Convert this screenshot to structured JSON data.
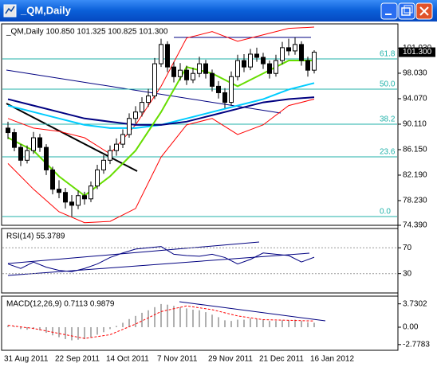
{
  "window": {
    "title": "_QM,Daily"
  },
  "chart_data": [
    {
      "type": "candlestick",
      "header": "_QM,Daily  100.850 101.325 100.825 101.300",
      "x": [
        "31 Aug 2011",
        null,
        null,
        null,
        null,
        null,
        null,
        null,
        "22 Sep 2011",
        null,
        null,
        null,
        null,
        null,
        null,
        null,
        "14 Oct 2011",
        null,
        null,
        null,
        null,
        null,
        null,
        null,
        "7 Nov 2011",
        null,
        null,
        null,
        null,
        null,
        null,
        null,
        "29 Nov 2011",
        null,
        null,
        null,
        null,
        null,
        null,
        null,
        "21 Dec 2011",
        null,
        null,
        null,
        null,
        null,
        null,
        null,
        "16 Jan 2012"
      ],
      "ohlc": [
        [
          89.5,
          90.5,
          87.8,
          88.8
        ],
        [
          88.8,
          89.4,
          85.9,
          86.5
        ],
        [
          86.5,
          87.0,
          83.6,
          84.5
        ],
        [
          84.5,
          86.8,
          84.0,
          86.0
        ],
        [
          86.0,
          88.9,
          85.5,
          88.0
        ],
        [
          88.0,
          88.6,
          85.8,
          86.5
        ],
        [
          86.5,
          87.0,
          82.2,
          83.0
        ],
        [
          83.0,
          83.5,
          79.2,
          80.0
        ],
        [
          80.0,
          81.4,
          78.6,
          79.5
        ],
        [
          79.5,
          80.2,
          77.0,
          78.0
        ],
        [
          78.0,
          79.1,
          75.8,
          77.5
        ],
        [
          77.5,
          79.8,
          76.9,
          79.0
        ],
        [
          79.0,
          79.6,
          77.6,
          78.5
        ],
        [
          78.5,
          81.2,
          78.0,
          80.5
        ],
        [
          80.5,
          83.8,
          80.0,
          83.0
        ],
        [
          83.0,
          85.3,
          82.4,
          84.5
        ],
        [
          84.5,
          86.8,
          83.9,
          86.0
        ],
        [
          86.0,
          87.9,
          85.2,
          87.0
        ],
        [
          87.0,
          89.3,
          86.4,
          88.5
        ],
        [
          88.5,
          91.8,
          88.0,
          91.0
        ],
        [
          91.0,
          92.9,
          90.2,
          92.0
        ],
        [
          92.0,
          94.3,
          91.3,
          93.5
        ],
        [
          93.5,
          95.6,
          92.8,
          94.5
        ],
        [
          94.5,
          100.4,
          94.0,
          99.5
        ],
        [
          99.5,
          103.4,
          99.0,
          102.5
        ],
        [
          102.5,
          103.0,
          98.2,
          99.0
        ],
        [
          99.0,
          99.8,
          96.6,
          97.5
        ],
        [
          97.5,
          99.6,
          96.9,
          98.5
        ],
        [
          98.5,
          99.2,
          96.2,
          97.0
        ],
        [
          97.0,
          98.9,
          96.5,
          98.0
        ],
        [
          98.0,
          100.6,
          97.4,
          99.5
        ],
        [
          99.5,
          100.1,
          97.2,
          98.0
        ],
        [
          98.0,
          98.6,
          95.2,
          96.0
        ],
        [
          96.0,
          96.8,
          94.1,
          95.0
        ],
        [
          95.0,
          95.7,
          92.6,
          93.5
        ],
        [
          93.5,
          98.3,
          93.0,
          97.5
        ],
        [
          97.5,
          100.9,
          96.9,
          100.0
        ],
        [
          100.0,
          101.0,
          98.2,
          99.0
        ],
        [
          99.0,
          101.8,
          98.5,
          101.0
        ],
        [
          101.0,
          102.0,
          99.8,
          100.5
        ],
        [
          100.5,
          101.2,
          98.7,
          99.5
        ],
        [
          99.5,
          100.0,
          97.2,
          98.0
        ],
        [
          98.0,
          100.9,
          97.5,
          100.0
        ],
        [
          100.0,
          102.9,
          99.4,
          102.0
        ],
        [
          102.0,
          103.4,
          100.8,
          101.5
        ],
        [
          101.5,
          103.6,
          100.9,
          102.5
        ],
        [
          102.5,
          103.0,
          99.2,
          100.0
        ],
        [
          100.0,
          100.6,
          97.5,
          98.5
        ],
        [
          98.5,
          101.6,
          98.0,
          101.3
        ]
      ],
      "ylim": [
        74.39,
        105.7
      ],
      "yticks": [
        {
          "value": 101.93,
          "label": "101.930"
        },
        {
          "value": 98.03,
          "label": "98.030"
        },
        {
          "value": 94.07,
          "label": "94.070"
        },
        {
          "value": 90.11,
          "label": "90.110"
        },
        {
          "value": 86.15,
          "label": "86.150"
        },
        {
          "value": 82.19,
          "label": "82.190"
        },
        {
          "value": 78.23,
          "label": "78.230"
        },
        {
          "value": 74.39,
          "label": "74.390"
        }
      ],
      "current_price": {
        "value": 101.3,
        "label": "101.300"
      },
      "fib_levels": [
        {
          "label": "61.8",
          "price": 100.26
        },
        {
          "label": "50.0",
          "price": 95.55
        },
        {
          "label": "38.2",
          "price": 90.11
        },
        {
          "label": "23.6",
          "price": 85.03
        },
        {
          "label": "0.0",
          "price": 75.75
        }
      ],
      "fib_color": "#20b2aa",
      "overlays": [
        {
          "color": "#ff0000",
          "x": [
            0,
            4,
            8,
            12,
            16,
            20,
            24,
            28,
            32,
            36,
            40,
            44,
            48
          ],
          "values": [
            91,
            89.5,
            89,
            88,
            85.5,
            90,
            96,
            103.5,
            104.5,
            103,
            104,
            105,
            105.2
          ]
        },
        {
          "color": "#ff0000",
          "x": [
            0,
            4,
            8,
            12,
            16,
            20,
            24,
            28,
            32,
            36,
            40,
            44,
            48
          ],
          "values": [
            84,
            80,
            76.5,
            74.8,
            75,
            77,
            85,
            90,
            91,
            88.5,
            90,
            93,
            94
          ]
        },
        {
          "color": "#00ccff",
          "x": [
            0,
            4,
            8,
            12,
            16,
            20,
            24,
            28,
            32,
            36,
            40,
            44,
            48
          ],
          "values": [
            93,
            92,
            91,
            90,
            89.5,
            89.5,
            90,
            91,
            92,
            93,
            94,
            95.5,
            96.5
          ]
        },
        {
          "color": "#000080",
          "x": [
            0,
            4,
            8,
            12,
            16,
            20,
            24,
            28,
            32,
            36,
            40,
            44,
            48
          ],
          "values": [
            94,
            93,
            92,
            91,
            90.5,
            90,
            90,
            90.5,
            91.5,
            92.5,
            93.5,
            94,
            94.3
          ]
        },
        {
          "color": "#66dd00",
          "x": [
            0,
            4,
            8,
            12,
            16,
            20,
            24,
            28,
            32,
            36,
            40,
            44,
            48
          ],
          "values": [
            88,
            86,
            82,
            79,
            82,
            86,
            92,
            99,
            98,
            96,
            98,
            100,
            100
          ]
        }
      ]
    },
    {
      "type": "line",
      "header": "RSI(14) 55.3789",
      "x": [
        0,
        2,
        4,
        6,
        8,
        10,
        12,
        14,
        16,
        18,
        20,
        22,
        24,
        26,
        28,
        30,
        32,
        34,
        36,
        38,
        40,
        42,
        44,
        46,
        48
      ],
      "values": [
        45,
        38,
        48,
        40,
        35,
        33,
        38,
        45,
        55,
        62,
        68,
        70,
        72,
        60,
        58,
        57,
        60,
        55,
        45,
        52,
        62,
        60,
        58,
        48,
        55.3789
      ],
      "color": "#000080",
      "ylim": [
        0,
        100
      ],
      "yticks": [
        70,
        30
      ]
    },
    {
      "type": "bar",
      "header": "MACD(12,26,9) 0.7113 0.9879",
      "values": [
        0.3,
        0.1,
        -0.3,
        -0.4,
        -0.3,
        -0.5,
        -0.9,
        -1.3,
        -1.6,
        -1.9,
        -2.1,
        -2.0,
        -1.9,
        -1.6,
        -1.2,
        -0.8,
        -0.3,
        0.2,
        0.7,
        1.3,
        1.8,
        2.3,
        2.7,
        3.2,
        3.7,
        3.6,
        3.4,
        3.2,
        3.0,
        2.8,
        2.7,
        2.4,
        2.0,
        1.6,
        1.1,
        1.0,
        1.2,
        1.2,
        1.4,
        1.3,
        1.2,
        1.0,
        1.0,
        1.1,
        1.1,
        1.2,
        1.0,
        0.8,
        0.7113
      ],
      "color": "#b0b0b0",
      "signal": {
        "color": "#ff0000",
        "x": [
          0,
          4,
          8,
          12,
          16,
          20,
          24,
          28,
          32,
          36,
          40,
          44,
          48
        ],
        "values": [
          0.3,
          -0.2,
          -1.0,
          -1.8,
          -1.2,
          0.5,
          2.5,
          3.4,
          2.8,
          1.8,
          1.2,
          1.1,
          0.9879
        ]
      },
      "ylim": [
        -3.69,
        4.96
      ],
      "yticks": [
        3.7302,
        {
          "value": 0,
          "label": "0.00"
        },
        -2.7783
      ]
    }
  ]
}
